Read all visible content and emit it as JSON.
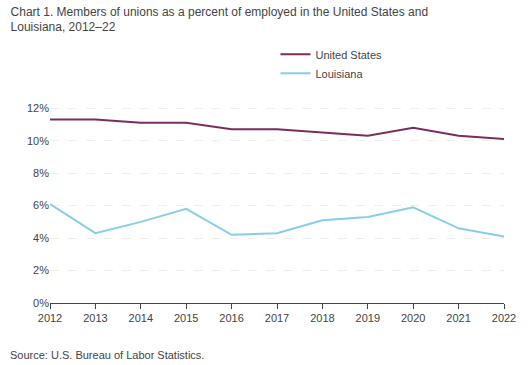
{
  "chart_data": {
    "type": "line",
    "title": "Chart 1. Members of unions as a percent of employed in the United States and Louisiana, 2012–22",
    "annotations": [
      {
        "text": "Source: U.S. Bureau of Labor Statistics."
      }
    ],
    "x": [
      2012,
      2013,
      2014,
      2015,
      2016,
      2017,
      2018,
      2019,
      2020,
      2021,
      2022
    ],
    "series": [
      {
        "name": "United States",
        "color": "#7B2D5E",
        "values": [
          11.3,
          11.3,
          11.1,
          11.1,
          10.7,
          10.7,
          10.5,
          10.3,
          10.8,
          10.3,
          10.1
        ]
      },
      {
        "name": "Louisiana",
        "color": "#87CEEB",
        "values": [
          6.1,
          4.3,
          5.0,
          5.8,
          4.2,
          4.3,
          5.1,
          5.3,
          5.9,
          4.6,
          4.1
        ]
      }
    ],
    "xlim": [
      2012,
      2022
    ],
    "xticks": [
      2012,
      2013,
      2014,
      2015,
      2016,
      2017,
      2018,
      2019,
      2020,
      2021,
      2022
    ],
    "ylim": [
      0,
      13
    ],
    "yticks": [
      {
        "value": 0,
        "label": "0%"
      },
      {
        "value": 2,
        "label": "2%"
      },
      {
        "value": 4,
        "label": "4%"
      },
      {
        "value": 6,
        "label": "6%"
      },
      {
        "value": 8,
        "label": "8%"
      },
      {
        "value": 10,
        "label": "10%"
      },
      {
        "value": 12,
        "label": "12%"
      }
    ],
    "grid": true,
    "legend": "top"
  }
}
